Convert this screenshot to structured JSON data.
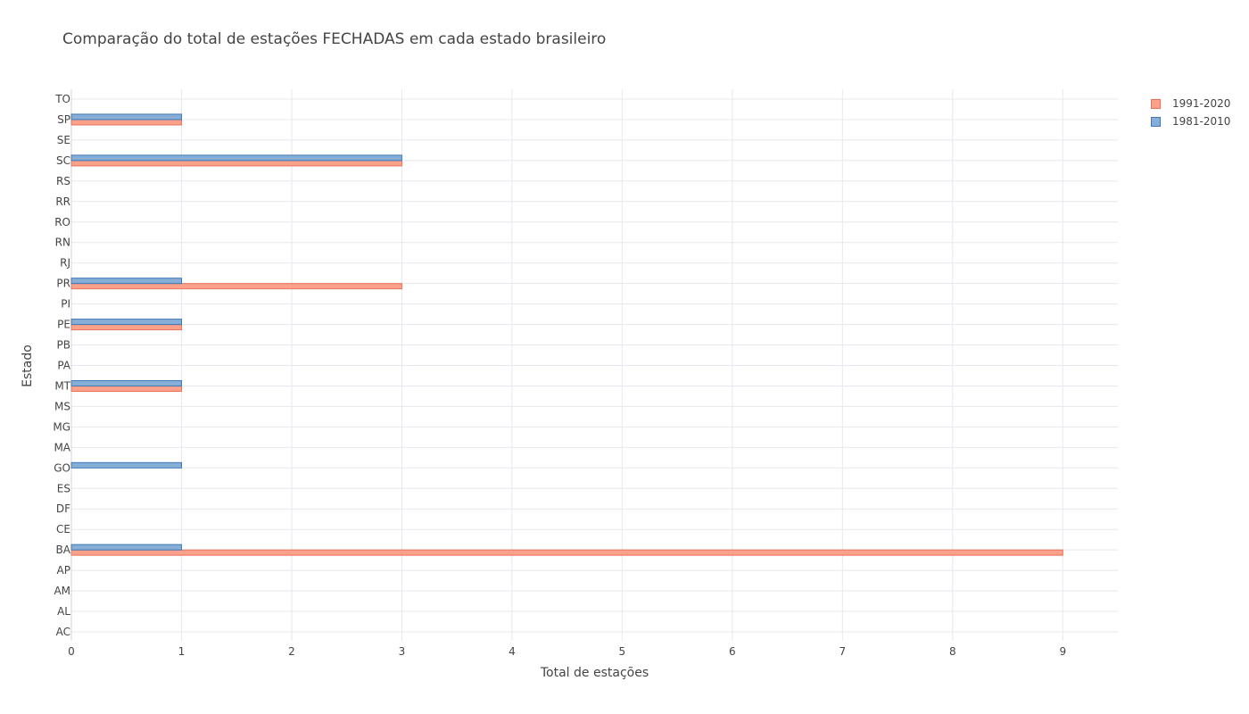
{
  "chart_data": {
    "type": "bar",
    "orientation": "horizontal",
    "title": "Comparação do total de estações FECHADAS em cada estado brasileiro",
    "xlabel": "Total de estações",
    "ylabel": "Estado",
    "xlim": [
      0,
      9.5
    ],
    "xticks": [
      0,
      1,
      2,
      3,
      4,
      5,
      6,
      7,
      8,
      9
    ],
    "categories": [
      "AC",
      "AL",
      "AM",
      "AP",
      "BA",
      "CE",
      "DF",
      "ES",
      "GO",
      "MA",
      "MG",
      "MS",
      "MT",
      "PA",
      "PB",
      "PE",
      "PI",
      "PR",
      "RJ",
      "RN",
      "RO",
      "RR",
      "RS",
      "SC",
      "SE",
      "SP",
      "TO"
    ],
    "series": [
      {
        "name": "1991-2020",
        "color": "#f9a18b",
        "border": "#e8735a",
        "values": [
          0,
          0,
          0,
          0,
          9,
          0,
          0,
          0,
          0,
          0,
          0,
          0,
          1,
          0,
          0,
          1,
          0,
          3,
          0,
          0,
          0,
          0,
          0,
          3,
          0,
          1,
          0
        ]
      },
      {
        "name": "1981-2010",
        "color": "#86aed6",
        "border": "#3f78b5",
        "values": [
          0,
          0,
          0,
          0,
          1,
          0,
          0,
          0,
          1,
          0,
          0,
          0,
          1,
          0,
          0,
          1,
          0,
          1,
          0,
          0,
          0,
          0,
          0,
          3,
          0,
          1,
          0
        ]
      }
    ],
    "grid": true,
    "legend_position": "top-right"
  }
}
